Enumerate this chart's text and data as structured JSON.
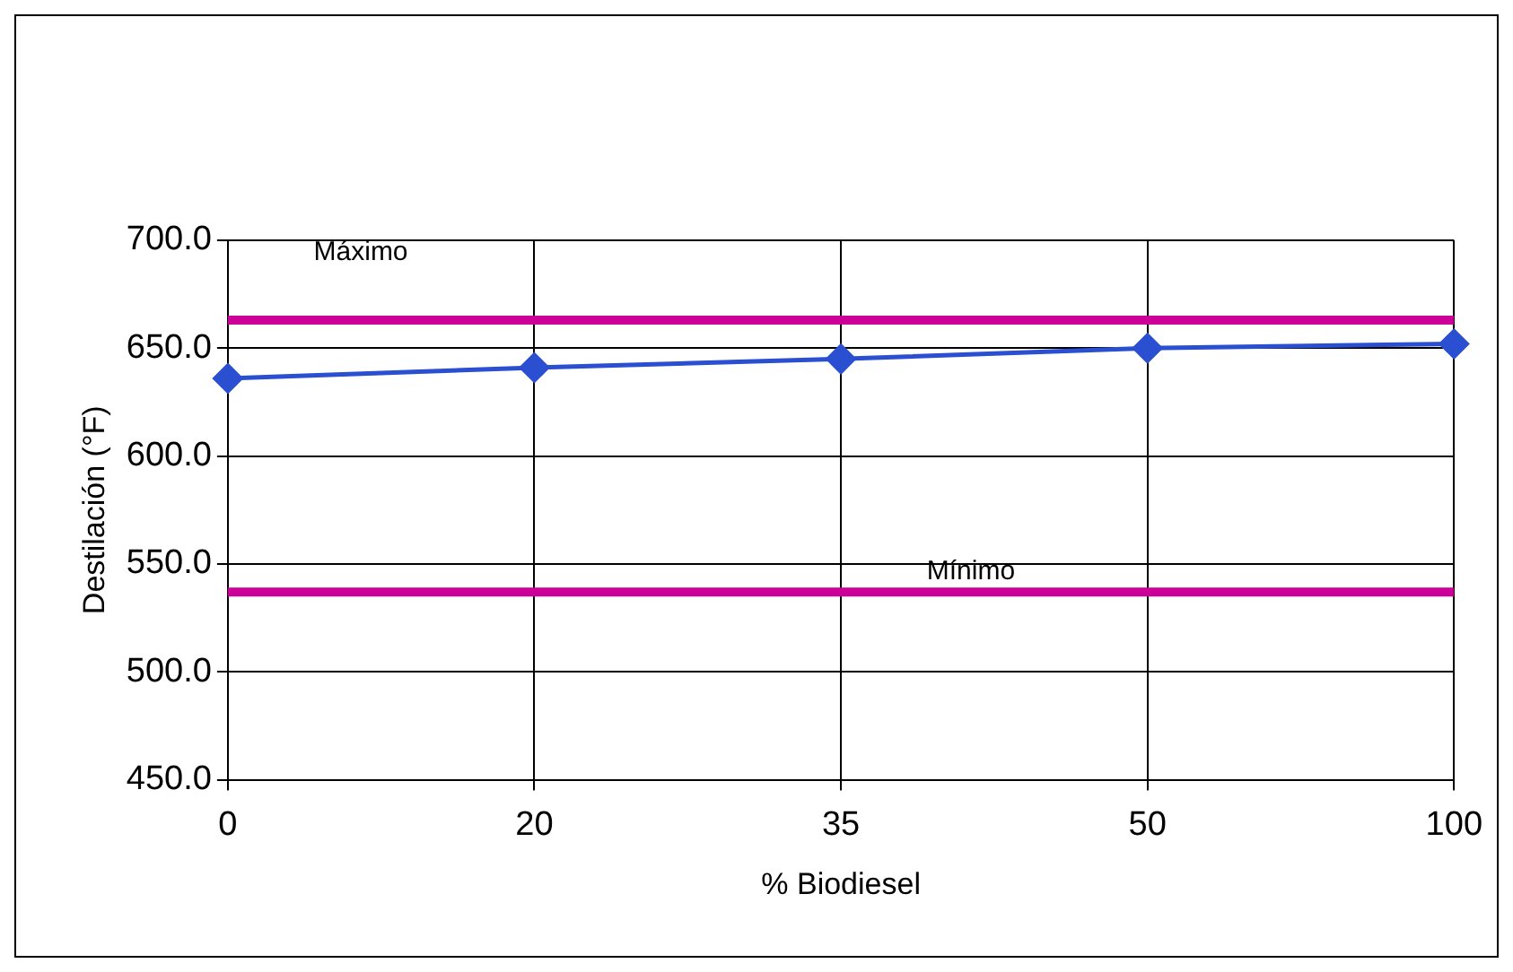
{
  "chart_data": {
    "type": "line",
    "xlabel": "% Biodiesel",
    "ylabel": "Destilación (°F)",
    "categories": [
      "0",
      "20",
      "35",
      "50",
      "100"
    ],
    "series": [
      {
        "color": "#2a4fd0",
        "values": [
          636,
          641,
          645,
          650,
          652
        ]
      }
    ],
    "ylim": [
      450,
      700
    ],
    "yticks": [
      {
        "value": 450,
        "label": "450.0"
      },
      {
        "value": 500,
        "label": "500.0"
      },
      {
        "value": 550,
        "label": "550.0"
      },
      {
        "value": 600,
        "label": "600.0"
      },
      {
        "value": 650,
        "label": "650.0"
      },
      {
        "value": 700,
        "label": "700.0"
      }
    ],
    "ref_lines": [
      {
        "axis": "y",
        "value": 663,
        "label": "Máximo",
        "color": "#cc0099"
      },
      {
        "axis": "y",
        "value": 537,
        "label": "Mínimo",
        "color": "#cc0099"
      }
    ],
    "grid": true,
    "legend": false,
    "marker": "diamond",
    "line_style": "solid"
  }
}
